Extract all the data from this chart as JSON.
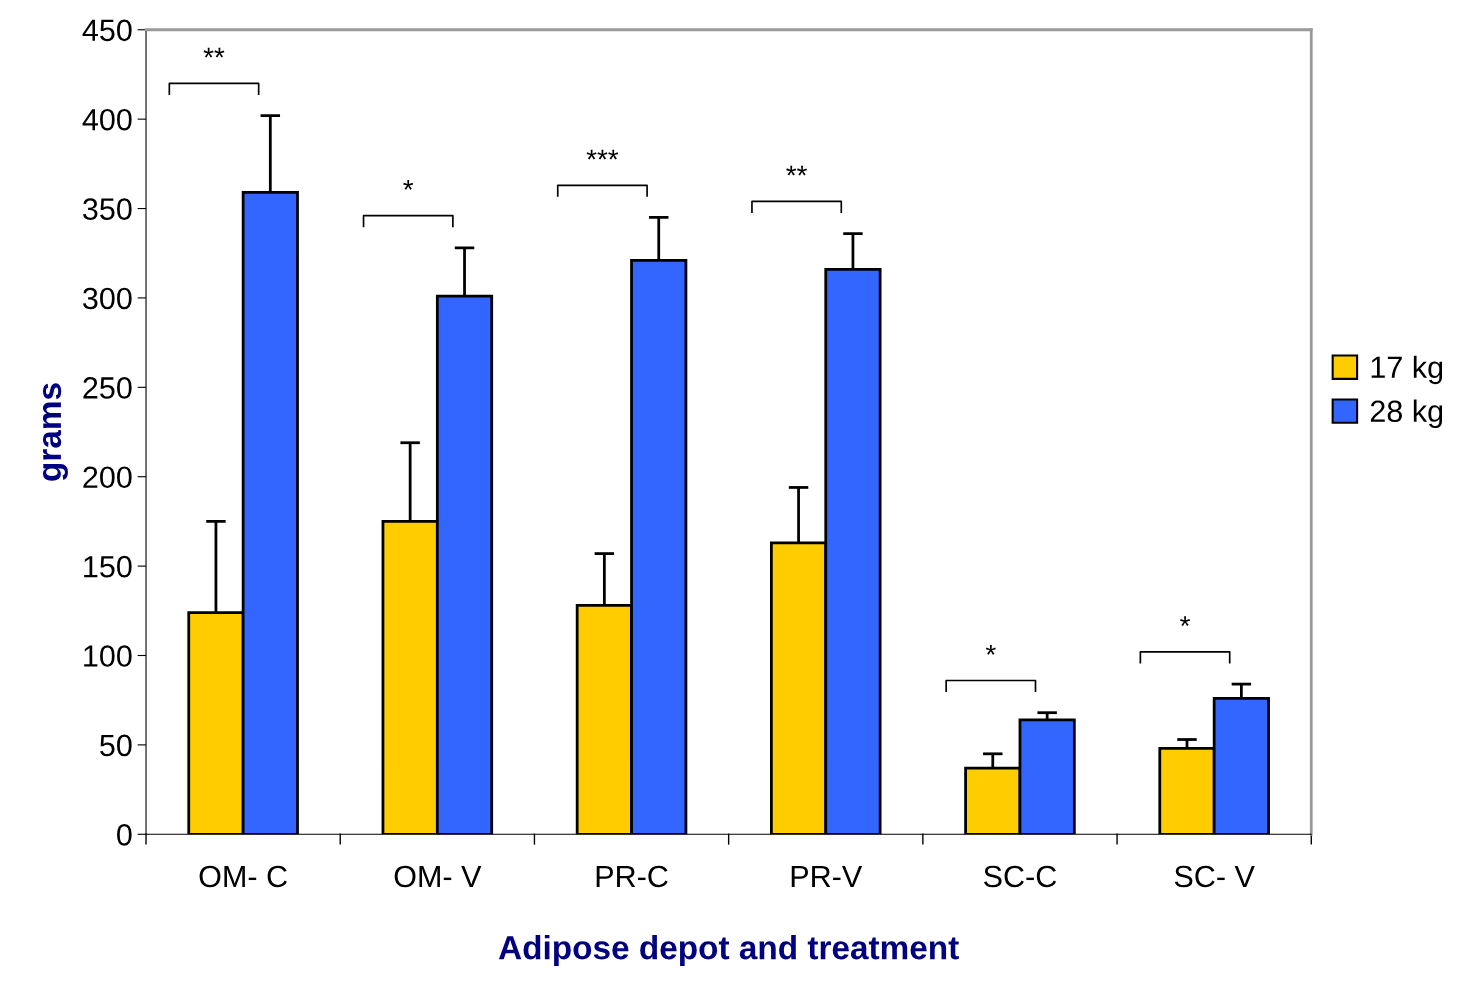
{
  "chart_data": {
    "type": "bar",
    "xlabel": "Adipose depot and treatment",
    "ylabel": "grams",
    "categories": [
      "OM- C",
      "OM- V",
      "PR-C",
      "PR-V",
      "SC-C",
      "SC- V"
    ],
    "series": [
      {
        "name": "17 kg",
        "color": "#ffcc00",
        "values": [
          124,
          175,
          128,
          163,
          37,
          48
        ],
        "errors": [
          51,
          44,
          29,
          31,
          8,
          5
        ]
      },
      {
        "name": "28 kg",
        "color": "#3366ff",
        "values": [
          359,
          301,
          321,
          316,
          64,
          76
        ],
        "errors": [
          43,
          27,
          24,
          20,
          4,
          8
        ]
      }
    ],
    "ylim": [
      0,
      450
    ],
    "yticks": [
      0,
      50,
      100,
      150,
      200,
      250,
      300,
      350,
      400,
      450
    ],
    "grid": false,
    "legend": "right",
    "annotations": [
      "**",
      "*",
      "***",
      "**",
      "*",
      "*"
    ]
  }
}
